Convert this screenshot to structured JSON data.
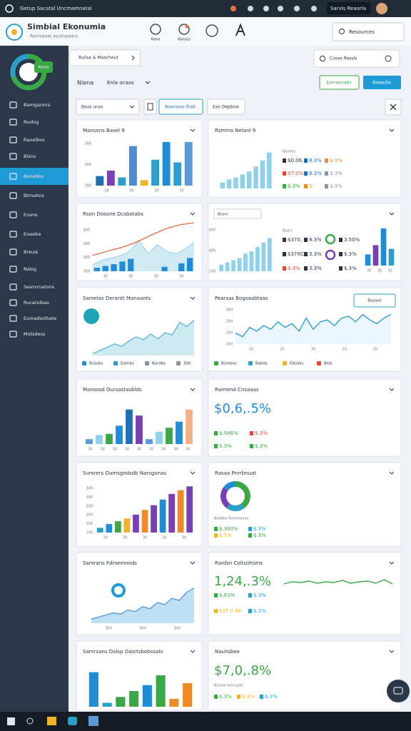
{
  "top_bar": {
    "title": "Getup Sacatal Uncmamnatal",
    "button": "Sarvis Reaorla"
  },
  "header": {
    "app_name": "Simbial Ekonumia",
    "subtitle": "Ramsaeat aoutrasotra",
    "nav": [
      "Rano",
      "Ransos"
    ],
    "search": "Resources"
  },
  "sidebar": {
    "badge": "Kocaa",
    "active": 4,
    "items": [
      "Bamgarona",
      "Nudog",
      "Raoelbos",
      "Bisns",
      "Bonedos",
      "Btmahns",
      "Eoans",
      "Eoaeba",
      "Breuis",
      "Nslog",
      "Searxrnatons",
      "Rucatolbas",
      "Eumadsolbate",
      "Motsdess"
    ]
  },
  "toolbar": {
    "breadcrumb": "Rulisa & Maacheut",
    "panel": "Cosas Rossls",
    "page_title": "Nlena",
    "view": "Enla ocaos",
    "export": "Exmanoabs",
    "primary": "Bieasrbs",
    "filter": "Bsus unos",
    "filter_button": "Bsenssse fhab",
    "options": "Eso Oepbios"
  },
  "cards": [
    {
      "title": "Mansons Basel 9",
      "charts": [
        {
          "type": "bar",
          "ylim": [
            0,
            330
          ],
          "values": [
            70,
            110,
            60,
            290,
            40,
            190,
            320,
            170,
            320
          ],
          "colors": [
            "#1f6fb5",
            "#7b3fb5",
            "#2aa0c8",
            "#4a8fd6",
            "#f0b429",
            "#2aa0c8",
            "#1f8dd6",
            "#2a9fd6",
            "#5b9bd5"
          ],
          "ylabels": [
            "300",
            "200",
            "100"
          ],
          "xlabels": [
            "28",
            "50",
            "30",
            "30"
          ]
        }
      ]
    },
    {
      "title": "Rsmrns Nelanl 9",
      "charts": [
        {
          "type": "bar",
          "ylim": [
            0,
            200
          ],
          "values": [
            30,
            45,
            55,
            70,
            85,
            110,
            140,
            180
          ],
          "color": "#8fd0ea"
        }
      ],
      "stats_label": "Basnes",
      "stats": [
        [
          {
            "text": "$0.06,",
            "color": "#2a3342"
          },
          {
            "text": "8.3%",
            "color": "#1f6fb5"
          },
          {
            "text": "$.3%",
            "color": "#f08a24"
          }
        ],
        [
          {
            "text": "$7.0%",
            "color": "#e04a3a"
          },
          {
            "text": "8.3%",
            "color": "#1f6fb5"
          },
          {
            "text": "$.3%",
            "color": "#8a93a0"
          }
        ],
        [
          {
            "text": "$.3%",
            "color": "#3aa845"
          },
          {
            "text": "3",
            "color": "#f08a24"
          },
          {
            "text": "$.3%",
            "color": "#8a93a0"
          }
        ]
      ]
    },
    {
      "title": "Rson Dosone Ocsbotabs",
      "charts": [
        {
          "type": "area",
          "ylim": [
            0,
            100
          ],
          "values": [
            15,
            25,
            30,
            35,
            45,
            70,
            40,
            60,
            45,
            40,
            50,
            65
          ],
          "color": "#cfe9f5",
          "line": "#a9d8ee",
          "ylabels": [
            "$00",
            "300",
            "300",
            "300"
          ],
          "xlabels": [
            "30",
            "30",
            "30",
            "30"
          ]
        },
        {
          "type": "bar",
          "ylim": [
            0,
            100
          ],
          "values": [
            8,
            12,
            16,
            22,
            28,
            0,
            0,
            0,
            10,
            0,
            18,
            30
          ],
          "color": "#1f8dd6"
        },
        {
          "type": "line",
          "ylim": [
            0,
            100
          ],
          "values": [
            30,
            38,
            45,
            55,
            68,
            80,
            88,
            92
          ],
          "color": "#e8734a"
        }
      ]
    },
    {
      "title": "Bsnaar Stiestbhs",
      "select": "Bsunc",
      "charts": [
        {
          "type": "bar",
          "ylim": [
            0,
            100
          ],
          "values": [
            15,
            20,
            25,
            30,
            40,
            45,
            55,
            65,
            75
          ],
          "color": "#8fd0ea",
          "ylabels": [
            "$00",
            "$00",
            "100"
          ]
        },
        {
          "type": "bar",
          "ylim": [
            0,
            100
          ],
          "values": [
            30,
            55,
            100,
            45
          ],
          "colors": [
            "#1f8dd6",
            "#7b3fb5",
            "#1f8dd6",
            "#2aa0c8"
          ],
          "xlabels": [
            "30",
            "30",
            "30"
          ]
        }
      ],
      "stats_label": "Bsurs",
      "stats": [
        [
          {
            "text": "$370,",
            "color": "#2a3342"
          },
          {
            "text": "8.3%",
            "color": "#2a3342"
          },
          {
            "text": "3.50%",
            "color": "#2a3342"
          }
        ],
        [
          {
            "text": "$370C",
            "color": "#2a3342"
          },
          {
            "text": "3.3%",
            "color": "#2a3342"
          },
          {
            "text": "$.3%",
            "color": "#2a3342"
          }
        ],
        [
          {
            "text": "$.3%",
            "color": "#e04a3a"
          },
          {
            "text": "3.3%",
            "color": "#2a3342"
          },
          {
            "text": "$.3%",
            "color": "#2a3342"
          }
        ]
      ]
    },
    {
      "title": "Samelas Derantt Manaants",
      "charts": [
        {
          "type": "area",
          "ylim": [
            0,
            100
          ],
          "values": [
            5,
            12,
            20,
            28,
            22,
            35,
            45,
            38,
            52,
            40,
            55,
            50,
            80,
            70,
            85
          ],
          "color": "#cdeaf3",
          "line": "#5fb8d8"
        }
      ],
      "legend": [
        {
          "text": "Bsasbs",
          "color": "#1f8dd6"
        },
        {
          "text": "Eatnbs",
          "color": "#2aa0c8"
        },
        {
          "text": "Bardbs",
          "color": "#8a93a0"
        },
        {
          "text": "300",
          "color": "#8a93a0"
        }
      ]
    },
    {
      "title": "Pearsas Bogsaabtaas",
      "button": "Basaos",
      "charts": [
        {
          "type": "area",
          "ylim": [
            0,
            100
          ],
          "values": [
            30,
            20,
            45,
            35,
            50,
            40,
            60,
            45,
            55,
            35,
            70,
            40,
            60,
            65,
            50,
            70,
            75,
            60,
            80,
            65,
            55,
            70,
            80
          ],
          "color": "#eaf6fb",
          "line": "#2a9fd6",
          "ylabels": [
            "300",
            "200",
            "100",
            "100"
          ],
          "xlabels": [
            "20",
            "20",
            "30",
            "20",
            "20"
          ]
        }
      ],
      "legend": [
        {
          "text": "Bsmbos",
          "color": "#3aa845"
        },
        {
          "text": "Baeds",
          "color": "#2aa0c8"
        },
        {
          "text": "Eleiaks",
          "color": "#f0b429"
        },
        {
          "text": "Bisb",
          "color": "#e04a3a"
        }
      ]
    },
    {
      "title": "Mansosd Oursastasblds",
      "charts": [
        {
          "type": "bar",
          "ylim": [
            0,
            100
          ],
          "values": [
            12,
            22,
            25,
            45,
            85,
            70,
            12,
            30,
            40,
            55,
            85
          ],
          "colors": [
            "#5b9bd5",
            "#8fd0ea",
            "#3aa845",
            "#1f8dd6",
            "#1f6fb5",
            "#7b3fb5",
            "#5b9bd5",
            "#8fd0ea",
            "#3aa845",
            "#1f8dd6",
            "#f4b183"
          ],
          "xlabels": [
            "30",
            "30",
            "30",
            "30",
            "30",
            "20",
            "30",
            "30",
            "30"
          ]
        }
      ]
    },
    {
      "title": "Rarmmd Cnsaaas",
      "big": {
        "text": "$0,6,.5%",
        "color": "#1f8dd6"
      },
      "stats": [
        [
          {
            "text": "$.S86%",
            "color": "#3aa845"
          },
          {
            "text": "$.3%",
            "color": "#e04a3a"
          }
        ],
        [
          {
            "text": "$.3%",
            "color": "#3aa845"
          },
          {
            "text": "$.3%",
            "color": "#3aa845"
          }
        ]
      ]
    },
    {
      "title": "Sumrers Oamsgndsdb Narsgonas",
      "charts": [
        {
          "type": "bar",
          "ylim": [
            0,
            100
          ],
          "values": [
            10,
            18,
            24,
            30,
            38,
            48,
            58,
            70,
            82,
            90,
            98
          ],
          "colors": [
            "#2aa0c8",
            "#1f8dd6",
            "#3aa845",
            "#f0b429",
            "#7b3fb5",
            "#f08a24",
            "#7b3fb5",
            "#1f8dd6",
            "#7b3fb5",
            "#f08a24",
            "#7b3fb5"
          ],
          "ylabels": [
            "300",
            "300",
            "200",
            "200",
            "100",
            "100"
          ],
          "xlabels": [
            "20",
            "30",
            "30",
            "30",
            "30"
          ]
        }
      ]
    },
    {
      "title": "Rasaa Pnrrbnuat",
      "charts": [
        {
          "type": "donut",
          "values": [
            40,
            20,
            25,
            15
          ],
          "colors": [
            "#3aa845",
            "#2aa0c8",
            "#7b3fb5",
            "#1f8dd6"
          ]
        }
      ],
      "stats_label": "Bsadbe Rammanos",
      "stats": [
        [
          {
            "text": "$.360%",
            "color": "#3aa845"
          },
          {
            "text": "$.3%",
            "color": "#2aa0c8"
          }
        ],
        [
          {
            "text": "$.5%",
            "color": "#f0b429"
          },
          {
            "text": "$.3%",
            "color": "#3aa845"
          }
        ]
      ]
    },
    {
      "title": "Samrans Fdrsemnods",
      "charts": [
        {
          "type": "area",
          "ylim": [
            0,
            100
          ],
          "values": [
            10,
            15,
            20,
            25,
            22,
            32,
            28,
            40,
            35,
            50,
            45,
            60,
            55,
            75,
            85
          ],
          "color": "#bfe0f4",
          "line": "#5b9bd5",
          "xlabels": [
            "300",
            "300",
            "300"
          ]
        }
      ]
    },
    {
      "title": "Rardsn Coltsohsms",
      "big": {
        "text": "1,24,.3%",
        "color": "#3aa845"
      },
      "charts": [
        {
          "type": "line",
          "ylim": [
            0,
            100
          ],
          "values": [
            40,
            55,
            50,
            60,
            45,
            55,
            50,
            65,
            45,
            55,
            60,
            45,
            70,
            40
          ],
          "color": "#3aa845"
        }
      ],
      "stats": [
        [
          {
            "text": "$.83%",
            "color": "#3aa845"
          },
          {
            "text": "$.3%",
            "color": "#2aa0c8"
          }
        ],
        [
          {
            "text": "$37,0.96",
            "color": "#f0b429"
          },
          {
            "text": "$.3%",
            "color": "#2aa0c8"
          }
        ]
      ]
    },
    {
      "title": "Samrsans Oalsp Oasrtsbobssats",
      "charts": [
        {
          "type": "bar",
          "ylim": [
            0,
            100
          ],
          "values": [
            88,
            10,
            25,
            40,
            55,
            80,
            20,
            60
          ],
          "colors": [
            "#1f8dd6",
            "#2aa0c8",
            "#3aa845",
            "#3aa845",
            "#1f8dd6",
            "#3aa845",
            "#f08a24",
            "#f08a24"
          ]
        }
      ]
    },
    {
      "title": "Nauhsbee",
      "big": {
        "text": "$7,0,.8%",
        "color": "#3aa845"
      },
      "stats_label": "Bssiaa ouscuato",
      "stats": [
        [
          {
            "text": "$.3%",
            "color": "#3aa845"
          },
          {
            "text": "$.3%",
            "color": "#f0b429"
          },
          {
            "text": "$.3%",
            "color": "#2aa0c8"
          }
        ]
      ]
    }
  ]
}
